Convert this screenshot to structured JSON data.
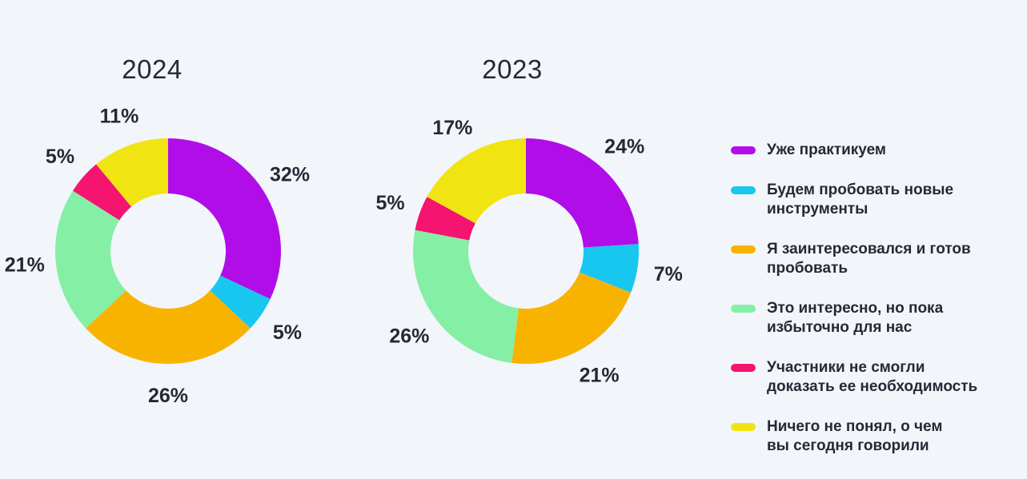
{
  "page": {
    "background": "#F2F6FA",
    "text_color": "#242936"
  },
  "chart_data": [
    {
      "type": "pie",
      "subtype": "donut",
      "title": "2024",
      "unit": "%",
      "start_angle": "top",
      "direction": "clockwise",
      "legend_position": "right",
      "categories": [
        "Уже практикуем",
        "Будем пробовать новые инструменты",
        "Я заинтересовался и готов пробовать",
        "Это интересно, но пока избыточно для нас",
        "Участники не смогли доказать ее необходимость",
        "Ничего не понял, о чем вы сегодня говорили"
      ],
      "values": [
        32,
        5,
        26,
        21,
        5,
        11
      ],
      "labels": [
        "32%",
        "5%",
        "26%",
        "21%",
        "5%",
        "11%"
      ],
      "colors": [
        "#B10DE9",
        "#17C7F0",
        "#F8B301",
        "#85EFA6",
        "#F5146F",
        "#F0E513"
      ]
    },
    {
      "type": "pie",
      "subtype": "donut",
      "title": "2023",
      "unit": "%",
      "start_angle": "top",
      "direction": "clockwise",
      "legend_position": "right",
      "categories": [
        "Уже практикуем",
        "Будем пробовать новые инструменты",
        "Я заинтересовался и готов пробовать",
        "Это интересно, но пока избыточно для нас",
        "Участники не смогли доказать ее необходимость",
        "Ничего не понял, о чем вы сегодня говорили"
      ],
      "values": [
        24,
        7,
        21,
        26,
        5,
        17
      ],
      "labels": [
        "24%",
        "7%",
        "21%",
        "26%",
        "5%",
        "17%"
      ],
      "colors": [
        "#B10DE9",
        "#17C7F0",
        "#F8B301",
        "#85EFA6",
        "#F5146F",
        "#F0E513"
      ]
    }
  ],
  "legend": {
    "items": [
      {
        "label": "Уже практикуем",
        "color": "#B10DE9"
      },
      {
        "label": "Будем пробовать новые\nинструменты",
        "color": "#17C7F0"
      },
      {
        "label": "Я заинтересовался и готов\nпробовать",
        "color": "#F8B301"
      },
      {
        "label": "Это интересно, но пока\nизбыточно для нас",
        "color": "#85EFA6"
      },
      {
        "label": "Участники не смогли\nдоказать ее необходимость",
        "color": "#F5146F"
      },
      {
        "label": "Ничего не понял, о чем\nвы сегодня говорили",
        "color": "#F0E513"
      }
    ]
  }
}
